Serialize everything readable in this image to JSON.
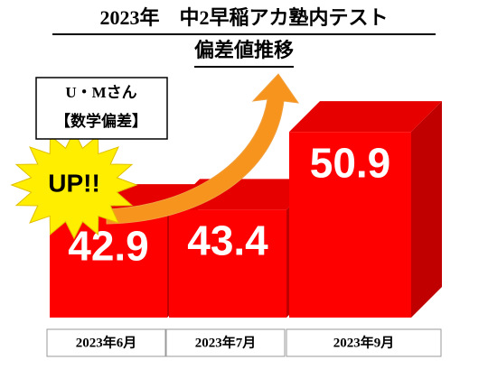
{
  "chart_data": {
    "type": "bar3d",
    "title": "2023年　中2早稲アカ塾内テスト",
    "subtitle": "偏差値推移",
    "annotations": {
      "person": "U・Mさん",
      "subject": "【数学偏差】",
      "badge": "UP!!"
    },
    "categories": [
      "2023年6月",
      "2023年7月",
      "2023年9月"
    ],
    "values": [
      42.9,
      43.4,
      50.9
    ],
    "color": "#ff0000",
    "ylim": [
      33,
      55
    ]
  }
}
